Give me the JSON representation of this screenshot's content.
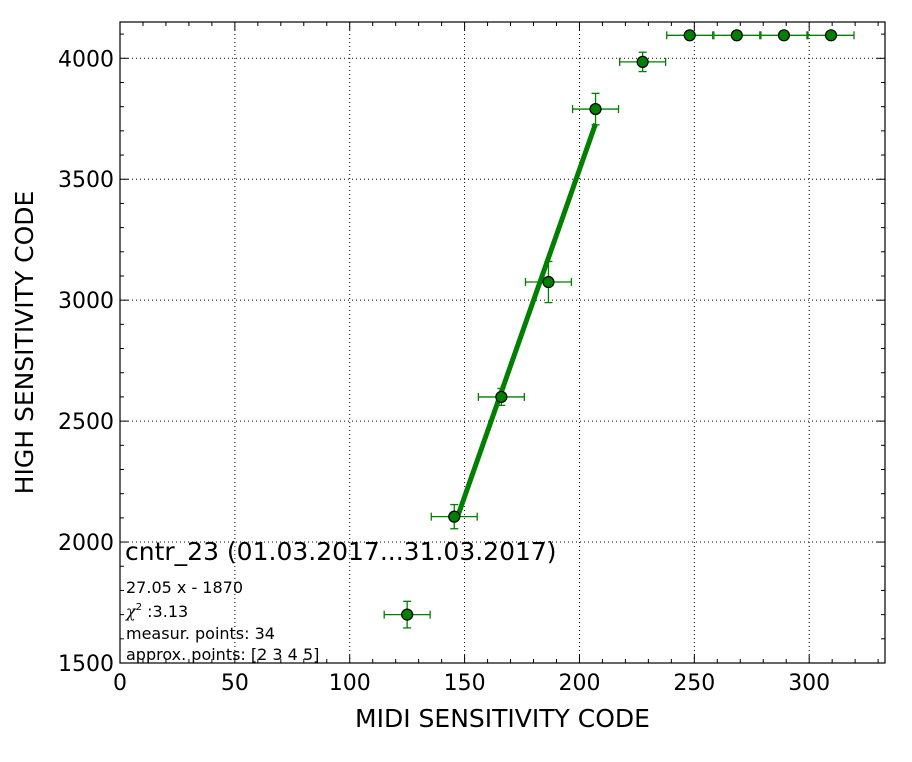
{
  "chart_data": {
    "type": "scatter",
    "xlabel": "MIDI SENSITIVITY CODE",
    "ylabel": "HIGH SENSITIVITY CODE",
    "xlim": [
      0,
      333
    ],
    "ylim": [
      1500,
      4150
    ],
    "x_ticks": [
      0,
      50,
      100,
      150,
      200,
      250,
      300
    ],
    "y_ticks": [
      1500,
      2000,
      2500,
      3000,
      3500,
      4000
    ],
    "grid": true,
    "points": [
      {
        "x": 125,
        "y": 1700,
        "xerr": 10,
        "yerr": 55
      },
      {
        "x": 145.5,
        "y": 2105,
        "xerr": 10,
        "yerr": 50
      },
      {
        "x": 166,
        "y": 2600,
        "xerr": 10,
        "yerr": 35
      },
      {
        "x": 186.5,
        "y": 3075,
        "xerr": 10,
        "yerr": 85
      },
      {
        "x": 207,
        "y": 3790,
        "xerr": 10,
        "yerr": 65
      },
      {
        "x": 227.5,
        "y": 3985,
        "xerr": 10,
        "yerr": 40
      },
      {
        "x": 248,
        "y": 4095,
        "xerr": 10,
        "yerr": 0
      },
      {
        "x": 268.5,
        "y": 4095,
        "xerr": 10,
        "yerr": 0
      },
      {
        "x": 289,
        "y": 4095,
        "xerr": 10,
        "yerr": 0
      },
      {
        "x": 309.5,
        "y": 4095,
        "xerr": 10,
        "yerr": 0
      }
    ],
    "fit_line": {
      "slope": 27.05,
      "intercept": -1870,
      "x_range": [
        146.7,
        207
      ]
    },
    "colors": {
      "marker": "#007f00",
      "marker_edge": "#000000",
      "errorbar": "#007f00",
      "fit": "#007f00"
    },
    "annotations": {
      "title": "cntr_23 (01.03.2017...31.03.2017)",
      "equation": "27.05 x - 1870",
      "chi_label": "χ",
      "chi_exp": "2",
      "chi_value": " :3.13",
      "measur_points": "measur. points: 34",
      "approx_points": "approx. points: [2 3 4 5]"
    }
  }
}
